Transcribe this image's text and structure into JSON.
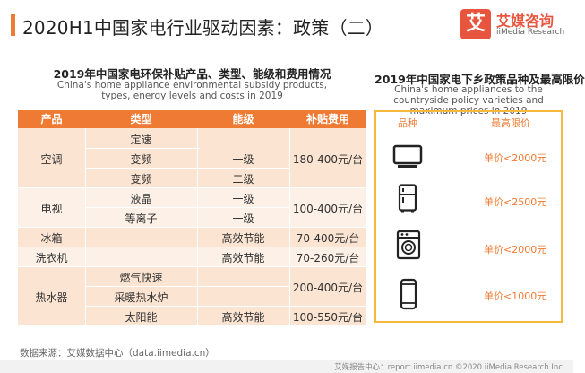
{
  "title": "2020H1中国家电行业驱动因素：政策（二）",
  "logo": {
    "mark": "艾",
    "name_cn": "艾媒咨询",
    "name_en": "iiMedia Research"
  },
  "left": {
    "title": "2019年中国家电环保补贴产品、类型、能级和费用情况",
    "subtitle": "China's home appliance environmental subsidy products, types, energy levels and costs in 2019",
    "headers": [
      "产品",
      "类型",
      "能级",
      "补贴费用"
    ],
    "products": [
      "空调",
      "电视",
      "冰箱",
      "洗衣机",
      "热水器"
    ],
    "types": [
      "定速",
      "变频",
      "变频",
      "液晶",
      "等离子",
      "燃气快速",
      "采暖热水炉",
      "太阳能"
    ],
    "levels": [
      "一级",
      "二级",
      "一级",
      "一级",
      "高效节能",
      "高效节能",
      "高效节能"
    ],
    "costs": [
      "180-400元/台",
      "100-400元/台",
      "70-400元/台",
      "70-260元/台",
      "200-400元/台",
      "100-550元/台"
    ]
  },
  "right": {
    "title": "2019年中国家电下乡政策品种及最高限价",
    "subtitle": "China's home appliances to the countryside policy varieties and maximum prices in 2019",
    "header_item": "品种",
    "header_price": "最高限价",
    "items": [
      {
        "icon": "tv-icon",
        "price": "单价<2000元"
      },
      {
        "icon": "fridge-icon",
        "price": "单价<2500元"
      },
      {
        "icon": "washing-machine-icon",
        "price": "单价<2000元"
      },
      {
        "icon": "phone-icon",
        "price": "单价<1000元"
      }
    ]
  },
  "footer": {
    "source": "数据来源：艾媒数据中心（data.iimedia.cn）",
    "report": "艾媒报告中心：report.iimedia.cn  ©2020  iiMedia Research  Inc"
  }
}
